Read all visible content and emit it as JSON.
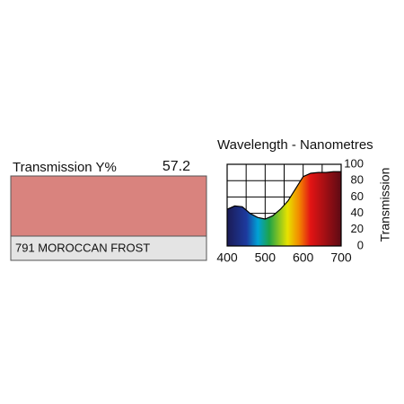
{
  "swatch": {
    "label": "Transmission Y%",
    "value_text": "57.2",
    "name": "791 MOROCCAN FROST",
    "color": "#d9837e"
  },
  "chart_data": {
    "type": "line",
    "title": "Wavelength - Nanometres",
    "y_label": "Transmission",
    "x": [
      400,
      420,
      440,
      460,
      480,
      500,
      520,
      540,
      560,
      580,
      600,
      620,
      640,
      660,
      680,
      700
    ],
    "series": [
      {
        "name": "Transmission",
        "color": "#000000",
        "values": [
          45,
          49,
          48,
          40,
          35,
          33,
          37,
          45,
          55,
          70,
          85,
          89,
          90,
          90,
          91,
          91
        ]
      }
    ],
    "xlim": [
      400,
      700
    ],
    "xticks": [
      400,
      500,
      600,
      700
    ],
    "x_minor_ticks": [
      450,
      550,
      650
    ],
    "ylim": [
      0,
      100
    ],
    "yticks": [
      0,
      20,
      40,
      60,
      80,
      100
    ],
    "grid": true,
    "spectrum_fill": true
  }
}
